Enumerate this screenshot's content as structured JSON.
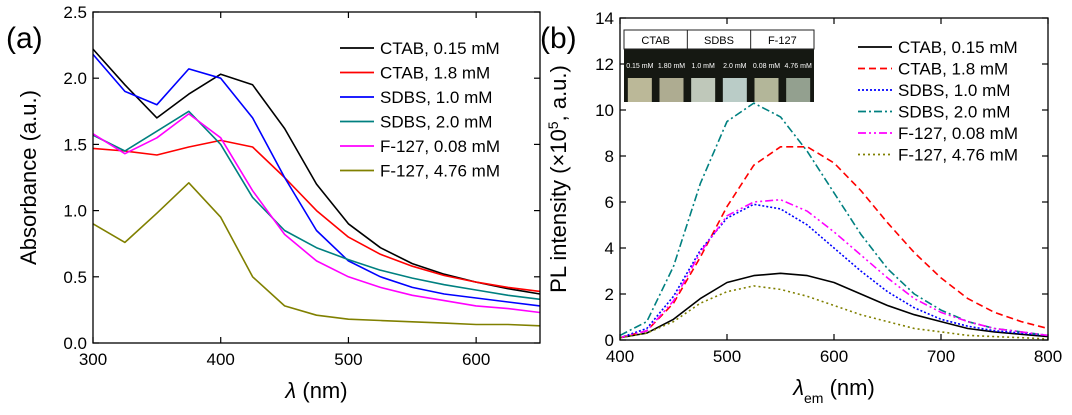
{
  "chart_data": [
    {
      "type": "line",
      "panel_label": "(a)",
      "ylabel": [
        {
          "text": "Absorbance (a.u.)"
        }
      ],
      "xlabel": [
        {
          "text": "λ",
          "italic": true
        },
        {
          "text": " (nm)"
        }
      ],
      "x": [
        300,
        325,
        350,
        375,
        400,
        425,
        450,
        475,
        500,
        525,
        550,
        575,
        600,
        625,
        650
      ],
      "xlim": [
        300,
        650
      ],
      "xticks": [
        300,
        400,
        500,
        600
      ],
      "ylim": [
        0,
        2.5
      ],
      "yticks": [
        {
          "value": 0,
          "label": "0.0"
        },
        0.5,
        {
          "value": 1,
          "label": "1.0"
        },
        1.5,
        {
          "value": 2,
          "label": "2.0"
        },
        2.5
      ],
      "series": [
        {
          "name": "CTAB, 0.15 mM",
          "color": "#000000",
          "style": "solid",
          "values": [
            2.22,
            1.95,
            1.7,
            1.88,
            2.03,
            1.95,
            1.62,
            1.2,
            0.9,
            0.72,
            0.6,
            0.52,
            0.46,
            0.41,
            0.37
          ]
        },
        {
          "name": "CTAB, 1.8 mM",
          "color": "#ff0000",
          "style": "solid",
          "values": [
            1.47,
            1.45,
            1.42,
            1.48,
            1.53,
            1.48,
            1.25,
            1.0,
            0.8,
            0.67,
            0.58,
            0.51,
            0.46,
            0.42,
            0.39
          ]
        },
        {
          "name": "SDBS, 1.0 mM",
          "color": "#0000ff",
          "style": "solid",
          "values": [
            2.18,
            1.9,
            1.8,
            2.07,
            2.0,
            1.7,
            1.25,
            0.85,
            0.62,
            0.5,
            0.42,
            0.37,
            0.34,
            0.31,
            0.28
          ]
        },
        {
          "name": "SDBS, 2.0 mM",
          "color": "#008080",
          "style": "solid",
          "values": [
            1.57,
            1.45,
            1.6,
            1.75,
            1.5,
            1.1,
            0.85,
            0.72,
            0.63,
            0.55,
            0.49,
            0.44,
            0.4,
            0.36,
            0.33
          ]
        },
        {
          "name": "F-127, 0.08 mM",
          "color": "#ff00ff",
          "style": "solid",
          "values": [
            1.58,
            1.43,
            1.55,
            1.73,
            1.55,
            1.15,
            0.82,
            0.62,
            0.5,
            0.42,
            0.36,
            0.32,
            0.28,
            0.26,
            0.23
          ]
        },
        {
          "name": "F-127, 4.76 mM",
          "color": "#808000",
          "style": "solid",
          "values": [
            0.9,
            0.76,
            0.98,
            1.21,
            0.95,
            0.5,
            0.28,
            0.21,
            0.18,
            0.17,
            0.16,
            0.15,
            0.14,
            0.14,
            0.13
          ]
        }
      ]
    },
    {
      "type": "line",
      "panel_label": "(b)",
      "ylabel": [
        {
          "text": "PL intensity (×10"
        },
        {
          "text": "5",
          "sup": true
        },
        {
          "text": ", a.u.)"
        }
      ],
      "xlabel": [
        {
          "text": "λ",
          "italic": true
        },
        {
          "text": "em",
          "sub": true
        },
        {
          "text": " (nm)"
        }
      ],
      "x": [
        400,
        425,
        450,
        475,
        500,
        525,
        550,
        575,
        600,
        625,
        650,
        675,
        700,
        725,
        750,
        775,
        800
      ],
      "xlim": [
        400,
        800
      ],
      "xticks": [
        400,
        500,
        600,
        700,
        800
      ],
      "ylim": [
        0,
        14
      ],
      "yticks": [
        0,
        2,
        4,
        6,
        8,
        10,
        12,
        14
      ],
      "series": [
        {
          "name": "CTAB, 0.15 mM",
          "color": "#000000",
          "style": "solid",
          "values": [
            0.1,
            0.3,
            0.9,
            1.8,
            2.5,
            2.8,
            2.9,
            2.8,
            2.5,
            2.0,
            1.5,
            1.1,
            0.8,
            0.5,
            0.35,
            0.25,
            0.15
          ]
        },
        {
          "name": "CTAB, 1.8 mM",
          "color": "#ff0000",
          "style": "dashed",
          "values": [
            0.1,
            0.4,
            1.6,
            3.6,
            5.8,
            7.6,
            8.4,
            8.4,
            7.7,
            6.5,
            5.1,
            3.8,
            2.7,
            1.8,
            1.2,
            0.8,
            0.5
          ]
        },
        {
          "name": "SDBS, 1.0 mM",
          "color": "#0000ff",
          "style": "dotted",
          "values": [
            0.1,
            0.5,
            1.9,
            3.9,
            5.3,
            5.9,
            5.7,
            5.0,
            4.0,
            3.0,
            2.1,
            1.4,
            0.9,
            0.6,
            0.4,
            0.3,
            0.2
          ]
        },
        {
          "name": "SDBS, 2.0 mM",
          "color": "#008080",
          "style": "dash-dot",
          "values": [
            0.2,
            0.8,
            3.2,
            6.8,
            9.5,
            10.3,
            9.7,
            8.2,
            6.4,
            4.6,
            3.1,
            2.0,
            1.3,
            0.8,
            0.5,
            0.35,
            0.2
          ]
        },
        {
          "name": "F-127, 0.08 mM",
          "color": "#ff00ff",
          "style": "dash-dot-dot",
          "values": [
            0.1,
            0.4,
            1.7,
            3.8,
            5.4,
            6.0,
            6.1,
            5.6,
            4.7,
            3.7,
            2.7,
            1.8,
            1.2,
            0.8,
            0.5,
            0.35,
            0.2
          ]
        },
        {
          "name": "F-127, 4.76 mM",
          "color": "#808000",
          "style": "short-dot",
          "values": [
            0.1,
            0.3,
            0.8,
            1.6,
            2.1,
            2.35,
            2.2,
            1.9,
            1.5,
            1.1,
            0.8,
            0.5,
            0.35,
            0.2,
            0.15,
            0.1,
            0.05
          ]
        }
      ],
      "inset": {
        "groups": [
          "CTAB",
          "SDBS",
          "F-127"
        ],
        "labels": [
          "0.15 mM",
          "1.80 mM",
          "1.0 mM",
          "2.0 mM",
          "0.08 mM",
          "4.76 mM"
        ]
      }
    }
  ]
}
